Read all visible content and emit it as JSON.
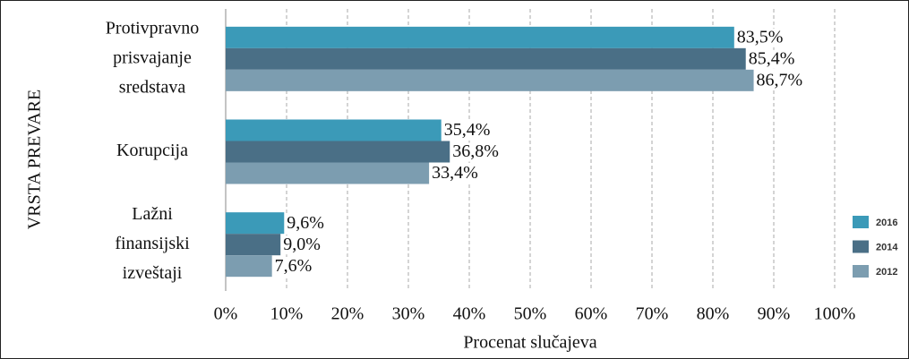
{
  "chart_data": {
    "type": "bar",
    "orientation": "horizontal",
    "categories": [
      [
        "Protivpravno",
        "prisvajanje",
        "sredstava"
      ],
      [
        "Korupcija"
      ],
      [
        "Lažni",
        "finansijski",
        "izveštaji"
      ]
    ],
    "series": [
      {
        "name": "2016",
        "color": "#3b9ab8",
        "values": [
          83.5,
          35.4,
          9.6
        ],
        "value_labels": [
          "83,5%",
          "35,4%",
          "9,6%"
        ]
      },
      {
        "name": "2014",
        "color": "#4a6f86",
        "values": [
          85.4,
          36.8,
          9.0
        ],
        "value_labels": [
          "85,4%",
          "36,8%",
          "9,0%"
        ]
      },
      {
        "name": "2012",
        "color": "#7c9db0",
        "values": [
          86.7,
          33.4,
          7.6
        ],
        "value_labels": [
          "86,7%",
          "33,4%",
          "7,6%"
        ]
      }
    ],
    "xlim": [
      0,
      100
    ],
    "xticks": [
      {
        "value": 0,
        "label": "0%"
      },
      {
        "value": 10,
        "label": "10%"
      },
      {
        "value": 20,
        "label": "20%"
      },
      {
        "value": 30,
        "label": "30%"
      },
      {
        "value": 40,
        "label": "40%"
      },
      {
        "value": 50,
        "label": "50%"
      },
      {
        "value": 60,
        "label": "60%"
      },
      {
        "value": 70,
        "label": "70%"
      },
      {
        "value": 80,
        "label": "80%"
      },
      {
        "value": 90,
        "label": "90%"
      },
      {
        "value": 100,
        "label": "100%"
      }
    ],
    "xlabel": "Procenat slučajeva",
    "ylabel": "VRSTA PREVARE",
    "grid": true,
    "legend": "right"
  }
}
